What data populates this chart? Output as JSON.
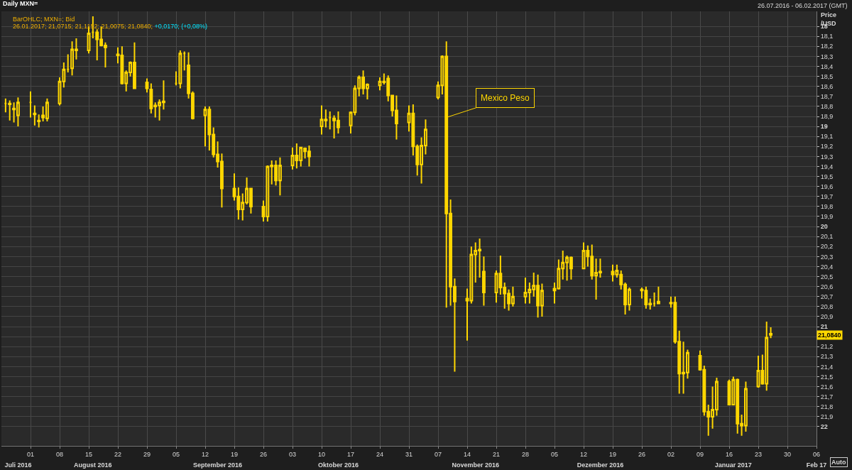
{
  "chart_data": {
    "type": "candlestick",
    "title": "Daily MXN=",
    "subtitle": "26.07.2016 - 06.02.2017 (GMT)",
    "ylabel": "Price /USD",
    "annotations": [
      "BarOHLC; MXN=; Bid",
      "26.01.2017; 21,0715; 21,1152; 21,0075; 21,0840;",
      "+0,0170; (+0,08%)",
      "Auto",
      {
        "text": "Mexico Peso",
        "x": "2016-11-09",
        "y": 18.91
      },
      {
        "text": "21,0840",
        "y": 21.084
      }
    ],
    "x": [
      "2016-07-26",
      "2016-07-27",
      "2016-07-28",
      "2016-07-29",
      "2016-08-01",
      "2016-08-02",
      "2016-08-03",
      "2016-08-04",
      "2016-08-05",
      "2016-08-08",
      "2016-08-09",
      "2016-08-10",
      "2016-08-11",
      "2016-08-12",
      "2016-08-15",
      "2016-08-16",
      "2016-08-17",
      "2016-08-18",
      "2016-08-19",
      "2016-08-22",
      "2016-08-23",
      "2016-08-24",
      "2016-08-25",
      "2016-08-26",
      "2016-08-29",
      "2016-08-30",
      "2016-08-31",
      "2016-09-01",
      "2016-09-02",
      "2016-09-05",
      "2016-09-06",
      "2016-09-07",
      "2016-09-08",
      "2016-09-09",
      "2016-09-12",
      "2016-09-13",
      "2016-09-14",
      "2016-09-15",
      "2016-09-16",
      "2016-09-19",
      "2016-09-20",
      "2016-09-21",
      "2016-09-22",
      "2016-09-23",
      "2016-09-26",
      "2016-09-27",
      "2016-09-28",
      "2016-09-29",
      "2016-09-30",
      "2016-10-03",
      "2016-10-04",
      "2016-10-05",
      "2016-10-06",
      "2016-10-07",
      "2016-10-10",
      "2016-10-11",
      "2016-10-12",
      "2016-10-13",
      "2016-10-14",
      "2016-10-17",
      "2016-10-18",
      "2016-10-19",
      "2016-10-20",
      "2016-10-21",
      "2016-10-24",
      "2016-10-25",
      "2016-10-26",
      "2016-10-27",
      "2016-10-28",
      "2016-10-31",
      "2016-11-01",
      "2016-11-02",
      "2016-11-03",
      "2016-11-04",
      "2016-11-07",
      "2016-11-08",
      "2016-11-09",
      "2016-11-10",
      "2016-11-11",
      "2016-11-14",
      "2016-11-15",
      "2016-11-16",
      "2016-11-17",
      "2016-11-18",
      "2016-11-21",
      "2016-11-22",
      "2016-11-23",
      "2016-11-24",
      "2016-11-25",
      "2016-11-28",
      "2016-11-29",
      "2016-11-30",
      "2016-12-01",
      "2016-12-02",
      "2016-12-05",
      "2016-12-06",
      "2016-12-07",
      "2016-12-08",
      "2016-12-09",
      "2016-12-12",
      "2016-12-13",
      "2016-12-14",
      "2016-12-15",
      "2016-12-16",
      "2016-12-19",
      "2016-12-20",
      "2016-12-21",
      "2016-12-22",
      "2016-12-23",
      "2016-12-26",
      "2016-12-27",
      "2016-12-28",
      "2016-12-29",
      "2016-12-30",
      "2017-01-02",
      "2017-01-03",
      "2017-01-04",
      "2017-01-05",
      "2017-01-06",
      "2017-01-09",
      "2017-01-10",
      "2017-01-11",
      "2017-01-12",
      "2017-01-13",
      "2017-01-16",
      "2017-01-17",
      "2017-01-18",
      "2017-01-19",
      "2017-01-20",
      "2017-01-23",
      "2017-01-24",
      "2017-01-25",
      "2017-01-26"
    ],
    "series": [
      {
        "color": "#ffd700",
        "ohlc": [
          [
            18.77,
            18.86,
            18.72,
            18.77
          ],
          [
            18.77,
            18.94,
            18.74,
            18.78
          ],
          [
            18.82,
            18.96,
            18.76,
            18.83
          ],
          [
            18.89,
            19.0,
            18.71,
            18.76
          ],
          [
            18.76,
            18.91,
            18.65,
            18.76
          ],
          [
            18.87,
            18.99,
            18.79,
            18.88
          ],
          [
            18.94,
            19.01,
            18.88,
            18.95
          ],
          [
            18.89,
            18.95,
            18.8,
            18.91
          ],
          [
            18.92,
            18.95,
            18.72,
            18.76
          ],
          [
            18.77,
            18.79,
            18.51,
            18.55
          ],
          [
            18.55,
            18.61,
            18.36,
            18.43
          ],
          [
            18.43,
            18.46,
            18.28,
            18.43
          ],
          [
            18.42,
            18.49,
            18.15,
            18.23
          ],
          [
            18.23,
            18.33,
            18.12,
            18.24
          ],
          [
            18.24,
            18.27,
            18.0,
            18.07
          ],
          [
            18.06,
            18.12,
            17.9,
            18.06
          ],
          [
            18.06,
            18.34,
            18.03,
            18.13
          ],
          [
            18.13,
            18.2,
            18.0,
            18.19
          ],
          [
            18.19,
            18.41,
            18.16,
            18.21
          ],
          [
            18.28,
            18.37,
            18.21,
            18.29
          ],
          [
            18.29,
            18.58,
            18.2,
            18.57
          ],
          [
            18.57,
            18.65,
            18.44,
            18.46
          ],
          [
            18.46,
            18.5,
            18.35,
            18.36
          ],
          [
            18.36,
            18.62,
            18.16,
            18.62
          ],
          [
            18.56,
            18.66,
            18.52,
            18.62
          ],
          [
            18.63,
            18.87,
            18.57,
            18.82
          ],
          [
            18.8,
            18.91,
            18.76,
            18.79
          ],
          [
            18.79,
            18.94,
            18.73,
            18.76
          ],
          [
            18.75,
            18.83,
            18.54,
            18.76
          ],
          [
            18.57,
            18.59,
            18.45,
            18.57
          ],
          [
            18.57,
            18.62,
            18.24,
            18.27
          ],
          [
            18.27,
            18.44,
            18.25,
            18.27
          ],
          [
            18.39,
            18.72,
            18.26,
            18.67
          ],
          [
            18.67,
            18.93,
            18.65,
            18.92
          ],
          [
            18.89,
            19.2,
            18.8,
            18.83
          ],
          [
            18.83,
            19.24,
            18.8,
            19.08
          ],
          [
            19.08,
            19.31,
            19.01,
            19.28
          ],
          [
            19.28,
            19.41,
            19.15,
            19.35
          ],
          [
            19.35,
            19.81,
            19.27,
            19.62
          ],
          [
            19.62,
            19.74,
            19.47,
            19.7
          ],
          [
            19.7,
            19.93,
            19.61,
            19.83
          ],
          [
            19.83,
            19.94,
            19.67,
            19.76
          ],
          [
            19.76,
            19.78,
            19.51,
            19.62
          ],
          [
            19.62,
            19.87,
            19.62,
            19.8
          ],
          [
            19.8,
            19.95,
            19.74,
            19.9
          ],
          [
            19.9,
            19.95,
            19.39,
            19.4
          ],
          [
            19.4,
            19.58,
            19.34,
            19.39
          ],
          [
            19.39,
            19.59,
            19.34,
            19.54
          ],
          [
            19.54,
            19.69,
            19.31,
            19.39
          ],
          [
            19.39,
            19.43,
            19.21,
            19.29
          ],
          [
            19.29,
            19.42,
            19.17,
            19.34
          ],
          [
            19.34,
            19.4,
            19.21,
            19.21
          ],
          [
            19.22,
            19.32,
            19.21,
            19.25
          ],
          [
            19.25,
            19.4,
            19.19,
            19.3
          ],
          [
            19.0,
            19.08,
            18.79,
            18.93
          ],
          [
            18.93,
            19.01,
            18.83,
            18.94
          ],
          [
            18.91,
            19.03,
            18.85,
            18.91
          ],
          [
            18.92,
            19.12,
            18.89,
            18.94
          ],
          [
            18.94,
            19.07,
            18.85,
            19.01
          ],
          [
            18.99,
            19.07,
            18.85,
            18.86
          ],
          [
            18.86,
            18.89,
            18.59,
            18.62
          ],
          [
            18.62,
            18.7,
            18.49,
            18.51
          ],
          [
            18.51,
            18.68,
            18.44,
            18.62
          ],
          [
            18.62,
            18.73,
            18.57,
            18.58
          ],
          [
            18.59,
            18.64,
            18.51,
            18.55
          ],
          [
            18.56,
            18.58,
            18.47,
            18.55
          ],
          [
            18.52,
            18.75,
            18.49,
            18.69
          ],
          [
            18.69,
            18.9,
            18.69,
            18.84
          ],
          [
            18.84,
            19.13,
            18.69,
            18.97
          ],
          [
            18.96,
            19.05,
            18.79,
            18.87
          ],
          [
            18.87,
            19.29,
            18.78,
            19.2
          ],
          [
            19.2,
            19.49,
            19.18,
            19.38
          ],
          [
            19.38,
            19.57,
            19.11,
            19.19
          ],
          [
            19.19,
            19.28,
            18.93,
            19.03
          ],
          [
            18.71,
            18.73,
            18.55,
            18.59
          ],
          [
            18.59,
            18.68,
            18.29,
            18.3
          ],
          [
            18.3,
            20.81,
            18.15,
            19.87
          ],
          [
            19.87,
            20.79,
            19.73,
            20.6
          ],
          [
            20.6,
            21.45,
            20.52,
            20.75
          ],
          [
            20.72,
            21.14,
            20.62,
            20.74
          ],
          [
            20.74,
            20.77,
            20.2,
            20.28
          ],
          [
            20.28,
            20.56,
            20.16,
            20.24
          ],
          [
            20.24,
            20.51,
            20.12,
            20.23
          ],
          [
            20.45,
            20.79,
            20.3,
            20.66
          ],
          [
            20.66,
            20.76,
            20.44,
            20.47
          ],
          [
            20.47,
            20.68,
            20.29,
            20.61
          ],
          [
            20.61,
            20.82,
            20.56,
            20.67
          ],
          [
            20.67,
            20.84,
            20.63,
            20.77
          ],
          [
            20.77,
            20.8,
            20.6,
            20.7
          ],
          [
            20.7,
            20.77,
            20.51,
            20.66
          ],
          [
            20.66,
            20.77,
            20.56,
            20.63
          ],
          [
            20.63,
            20.7,
            20.46,
            20.59
          ],
          [
            20.59,
            20.91,
            20.48,
            20.79
          ],
          [
            20.79,
            20.9,
            20.57,
            20.64
          ],
          [
            20.64,
            20.77,
            20.56,
            20.62
          ],
          [
            20.62,
            20.63,
            20.33,
            20.42
          ],
          [
            20.42,
            20.53,
            20.24,
            20.36
          ],
          [
            20.36,
            20.54,
            20.29,
            20.31
          ],
          [
            20.31,
            20.53,
            20.3,
            20.42
          ],
          [
            20.42,
            20.42,
            20.16,
            20.24
          ],
          [
            20.24,
            20.4,
            20.19,
            20.3
          ],
          [
            20.3,
            20.53,
            20.18,
            20.49
          ],
          [
            20.49,
            20.73,
            20.32,
            20.46
          ],
          [
            20.46,
            20.51,
            20.32,
            20.45
          ],
          [
            20.45,
            20.55,
            20.38,
            20.48
          ],
          [
            20.48,
            20.51,
            20.38,
            20.44
          ],
          [
            20.48,
            20.63,
            20.44,
            20.58
          ],
          [
            20.58,
            20.88,
            20.56,
            20.78
          ],
          [
            20.78,
            20.84,
            20.61,
            20.63
          ],
          [
            20.63,
            20.72,
            20.61,
            20.64
          ],
          [
            20.64,
            20.82,
            20.6,
            20.78
          ],
          [
            20.78,
            20.83,
            20.72,
            20.77
          ],
          [
            20.77,
            20.8,
            20.66,
            20.77
          ],
          [
            20.77,
            20.77,
            20.6,
            20.75
          ],
          [
            20.76,
            20.81,
            20.7,
            20.77
          ],
          [
            20.76,
            21.17,
            20.7,
            21.15
          ],
          [
            21.15,
            21.67,
            21.04,
            21.47
          ],
          [
            21.47,
            21.67,
            21.15,
            21.46
          ],
          [
            21.46,
            21.52,
            21.23,
            21.26
          ],
          [
            21.29,
            21.44,
            21.24,
            21.43
          ],
          [
            21.43,
            21.89,
            21.39,
            21.85
          ],
          [
            21.85,
            22.09,
            21.78,
            21.9
          ],
          [
            21.9,
            22.02,
            21.6,
            21.83
          ],
          [
            21.83,
            21.89,
            21.51,
            21.55
          ],
          [
            21.55,
            21.78,
            21.53,
            21.78
          ],
          [
            21.78,
            21.78,
            21.5,
            21.53
          ],
          [
            21.53,
            22.07,
            21.52,
            21.97
          ],
          [
            21.97,
            22.09,
            21.88,
            21.99
          ],
          [
            21.99,
            22.05,
            21.55,
            21.62
          ],
          [
            21.6,
            21.61,
            21.29,
            21.44
          ],
          [
            21.44,
            21.58,
            21.28,
            21.57
          ],
          [
            21.57,
            21.64,
            20.95,
            21.11
          ],
          [
            21.0715,
            21.1152,
            21.0075,
            21.084
          ]
        ]
      }
    ],
    "xlim": [
      "2016-07-25",
      "2017-02-06"
    ],
    "xticks": [
      {
        "value": "2016-08-01",
        "label": "01"
      },
      {
        "value": "2016-08-08",
        "label": "08"
      },
      {
        "value": "2016-08-15",
        "label": "15"
      },
      {
        "value": "2016-08-22",
        "label": "22"
      },
      {
        "value": "2016-08-29",
        "label": "29"
      },
      {
        "value": "2016-09-05",
        "label": "05"
      },
      {
        "value": "2016-09-12",
        "label": "12"
      },
      {
        "value": "2016-09-19",
        "label": "19"
      },
      {
        "value": "2016-09-26",
        "label": "26"
      },
      {
        "value": "2016-10-03",
        "label": "03"
      },
      {
        "value": "2016-10-10",
        "label": "10"
      },
      {
        "value": "2016-10-17",
        "label": "17"
      },
      {
        "value": "2016-10-24",
        "label": "24"
      },
      {
        "value": "2016-10-31",
        "label": "31"
      },
      {
        "value": "2016-11-07",
        "label": "07"
      },
      {
        "value": "2016-11-14",
        "label": "14"
      },
      {
        "value": "2016-11-21",
        "label": "21"
      },
      {
        "value": "2016-11-28",
        "label": "28"
      },
      {
        "value": "2016-12-05",
        "label": "05"
      },
      {
        "value": "2016-12-12",
        "label": "12"
      },
      {
        "value": "2016-12-19",
        "label": "19"
      },
      {
        "value": "2016-12-26",
        "label": "26"
      },
      {
        "value": "2017-01-02",
        "label": "02"
      },
      {
        "value": "2017-01-09",
        "label": "09"
      },
      {
        "value": "2017-01-16",
        "label": "16"
      },
      {
        "value": "2017-01-23",
        "label": "23"
      },
      {
        "value": "2017-01-30",
        "label": "30"
      },
      {
        "value": "2017-02-06",
        "label": "06"
      }
    ],
    "x2lim": [
      "2016-07-25",
      "2017-02-06"
    ],
    "x2ticks": [
      {
        "value": "2016-07-29",
        "label": "Juli 2016"
      },
      {
        "value": "2016-08-16",
        "label": "August 2016"
      },
      {
        "value": "2016-09-15",
        "label": "September 2016"
      },
      {
        "value": "2016-10-14",
        "label": "Oktober 2016"
      },
      {
        "value": "2016-11-16",
        "label": "November 2016"
      },
      {
        "value": "2016-12-16",
        "label": "Dezember 2016"
      },
      {
        "value": "2017-01-17",
        "label": "Januar 2017"
      },
      {
        "value": "2017-02-06",
        "label": "Feb 17"
      }
    ],
    "ylim": [
      22.19,
      17.85
    ],
    "yticks": [
      18,
      {
        "value": 18.1,
        "label": "18,1"
      },
      {
        "value": 18.2,
        "label": "18,2"
      },
      {
        "value": 18.3,
        "label": "18,3"
      },
      {
        "value": 18.4,
        "label": "18,4"
      },
      {
        "value": 18.5,
        "label": "18,5"
      },
      {
        "value": 18.6,
        "label": "18,6"
      },
      {
        "value": 18.7,
        "label": "18,7"
      },
      {
        "value": 18.8,
        "label": "18,8"
      },
      {
        "value": 18.9,
        "label": "18,9"
      },
      19,
      {
        "value": 19.1,
        "label": "19,1"
      },
      {
        "value": 19.2,
        "label": "19,2"
      },
      {
        "value": 19.3,
        "label": "19,3"
      },
      {
        "value": 19.4,
        "label": "19,4"
      },
      {
        "value": 19.5,
        "label": "19,5"
      },
      {
        "value": 19.6,
        "label": "19,6"
      },
      {
        "value": 19.7,
        "label": "19,7"
      },
      {
        "value": 19.8,
        "label": "19,8"
      },
      {
        "value": 19.9,
        "label": "19,9"
      },
      20,
      {
        "value": 20.1,
        "label": "20,1"
      },
      {
        "value": 20.2,
        "label": "20,2"
      },
      {
        "value": 20.3,
        "label": "20,3"
      },
      {
        "value": 20.4,
        "label": "20,4"
      },
      {
        "value": 20.5,
        "label": "20,5"
      },
      {
        "value": 20.6,
        "label": "20,6"
      },
      {
        "value": 20.7,
        "label": "20,7"
      },
      {
        "value": 20.8,
        "label": "20,8"
      },
      {
        "value": 20.9,
        "label": "20,9"
      },
      21,
      {
        "value": 21.1,
        "label": null
      },
      {
        "value": 21.2,
        "label": "21,2"
      },
      {
        "value": 21.3,
        "label": "21,3"
      },
      {
        "value": 21.4,
        "label": "21,4"
      },
      {
        "value": 21.5,
        "label": "21,5"
      },
      {
        "value": 21.6,
        "label": "21,6"
      },
      {
        "value": 21.7,
        "label": "21,7"
      },
      {
        "value": 21.8,
        "label": "21,8"
      },
      {
        "value": 21.9,
        "label": "21,9"
      },
      22
    ],
    "grid": true
  }
}
